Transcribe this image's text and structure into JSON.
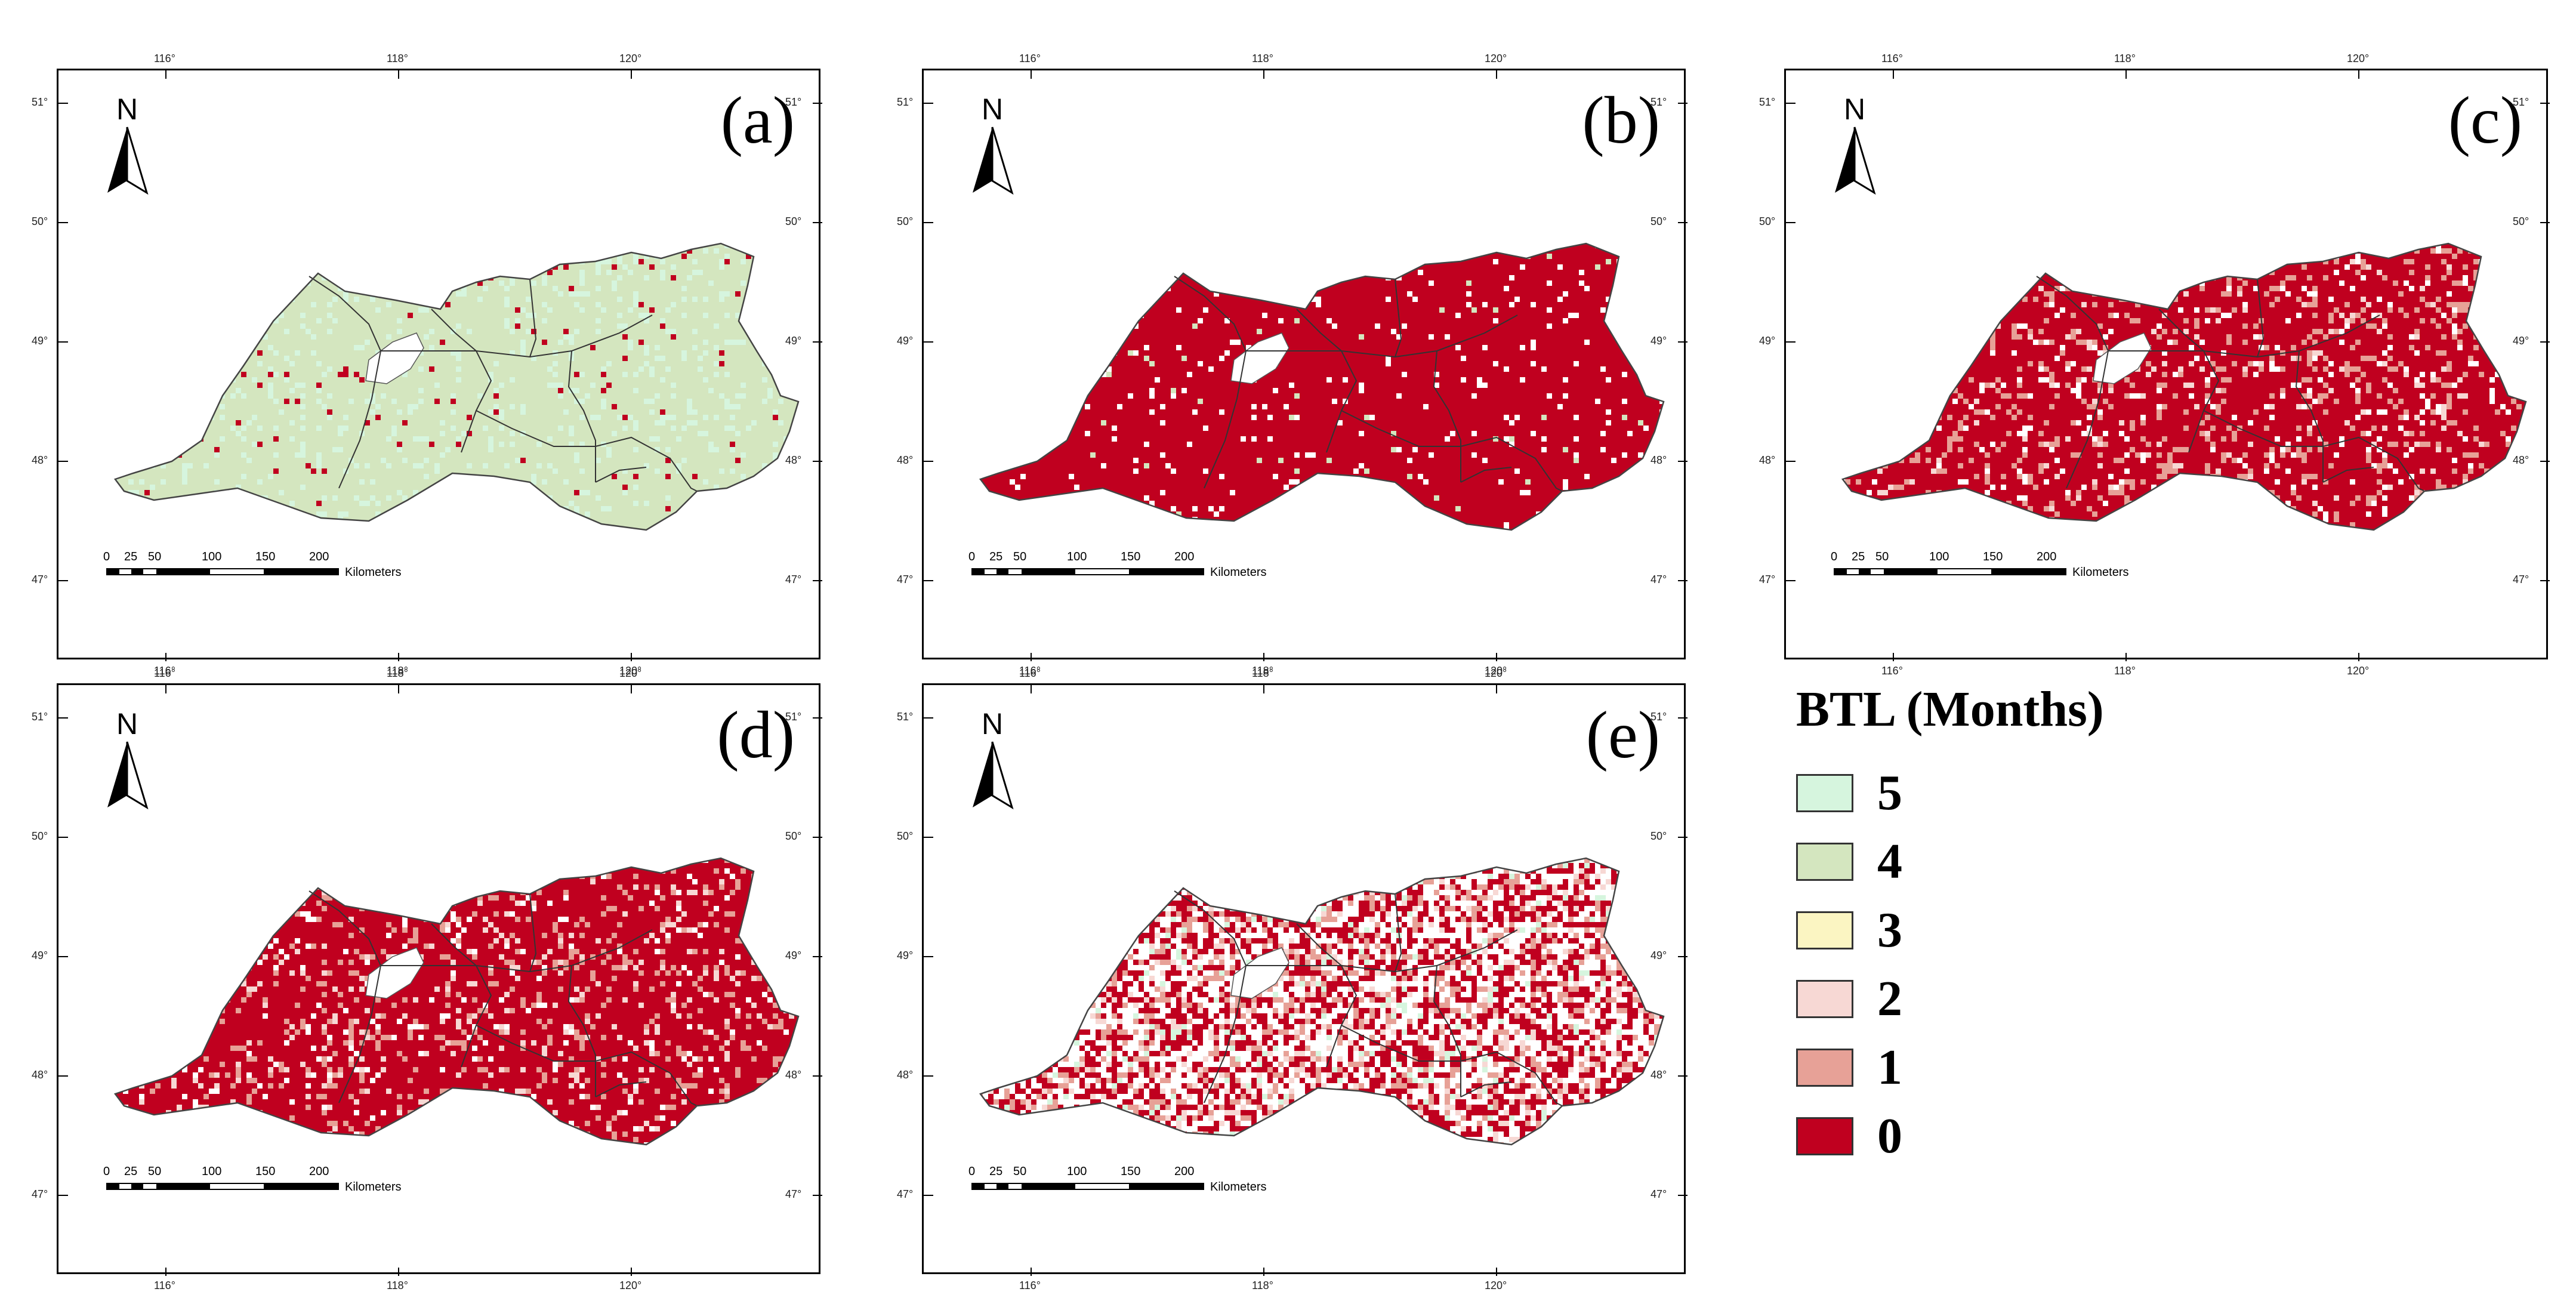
{
  "figure": {
    "panels": [
      {
        "label": "(a)",
        "dominant": "4",
        "scatter": [
          [
            "0",
            0.025
          ],
          [
            "5",
            0.12
          ]
        ]
      },
      {
        "label": "(b)",
        "dominant": "0",
        "scatter": [
          [
            "white",
            0.05
          ],
          [
            "4",
            0.01
          ]
        ]
      },
      {
        "label": "(c)",
        "dominant": "0",
        "scatter": [
          [
            "white",
            0.06
          ],
          [
            "1",
            0.12
          ],
          [
            "2",
            0.03
          ]
        ]
      },
      {
        "label": "(d)",
        "dominant": "0",
        "scatter": [
          [
            "white",
            0.05
          ],
          [
            "1",
            0.1
          ],
          [
            "2",
            0.05
          ]
        ]
      },
      {
        "label": "(e)",
        "dominant": "0",
        "scatter": [
          [
            "white",
            0.38
          ],
          [
            "1",
            0.14
          ],
          [
            "2",
            0.08
          ],
          [
            "5",
            0.04
          ]
        ]
      }
    ],
    "lat_ticks": [
      "51°",
      "50°",
      "49°",
      "48°",
      "47°"
    ],
    "lon_ticks": [
      "116°",
      "118°",
      "120°"
    ],
    "north_label": "N",
    "scale_bar": {
      "numbers": [
        "0",
        "25",
        "50",
        "100",
        "150",
        "200"
      ],
      "unit": "Kilometers"
    }
  },
  "legend": {
    "title": "BTL (Months)",
    "items": [
      {
        "label": "5",
        "color": "#d6f5de"
      },
      {
        "label": "4",
        "color": "#d4e6bf"
      },
      {
        "label": "3",
        "color": "#fbf5c2"
      },
      {
        "label": "2",
        "color": "#f7d8d4"
      },
      {
        "label": "1",
        "color": "#e7a197"
      },
      {
        "label": "0",
        "color": "#c0001f"
      }
    ]
  }
}
